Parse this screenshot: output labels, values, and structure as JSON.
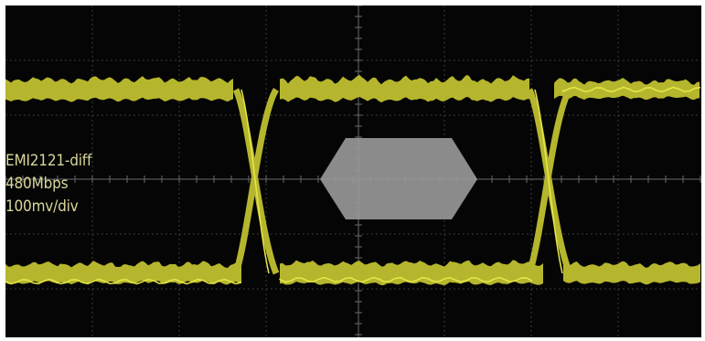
{
  "display": {
    "background_color": "#050505",
    "grid_color": "#3a3a3a",
    "trace_color": "#b6b62e",
    "trace_highlight_color": "#e8e84a",
    "mask_color": "#9a9a9a"
  },
  "channel_labels": {
    "signal_name": "EMI2121-diff",
    "data_rate": "480Mbps",
    "vertical_scale": "100mv/div"
  }
}
